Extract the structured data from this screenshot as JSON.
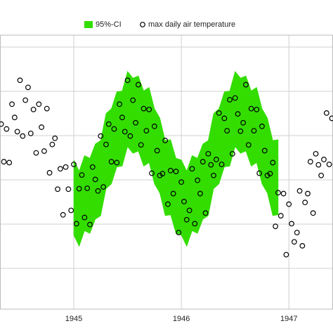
{
  "chart_data": {
    "type": "scatter",
    "xlim": [
      1944.314,
      1947.41
    ],
    "xticks": [
      1945,
      1946,
      1947
    ],
    "ylim": [
      -29.2,
      32.7
    ],
    "ygrid": [
      30,
      20,
      10,
      0,
      -10,
      -20
    ],
    "grid": true,
    "ci": {
      "name": "95%-CI",
      "color": "#33dd00",
      "x": [
        1945.0,
        1945.05,
        1945.1,
        1945.15,
        1945.2,
        1945.25,
        1945.3,
        1945.35,
        1945.4,
        1945.45,
        1945.5,
        1945.55,
        1945.6,
        1945.65,
        1945.7,
        1945.75,
        1945.8,
        1945.85,
        1945.9,
        1945.95,
        1946.0,
        1946.05,
        1946.1,
        1946.15,
        1946.2,
        1946.25,
        1946.3,
        1946.35,
        1946.4,
        1946.45,
        1946.5,
        1946.55,
        1946.6,
        1946.65,
        1946.7,
        1946.75,
        1946.8,
        1946.85,
        1946.9
      ],
      "upper": [
        4.5,
        2,
        5.5,
        4.9,
        8.1,
        8.9,
        15,
        16.1,
        19.9,
        20.1,
        24.5,
        23,
        23.5,
        20.1,
        20.9,
        16.1,
        14,
        8.9,
        9.1,
        4.9,
        4.5,
        2,
        5.5,
        4.9,
        8.1,
        8.9,
        15,
        16.1,
        19.9,
        20.1,
        24.5,
        23,
        23.5,
        20.1,
        20.9,
        16.1,
        14,
        8.9,
        9.1
      ],
      "lower": [
        -12.5,
        -15,
        -11.5,
        -12.1,
        -8.9,
        -8.1,
        -2,
        -0.9,
        2.9,
        3.1,
        7.5,
        6,
        6.5,
        3.1,
        3.9,
        -0.9,
        -3,
        -8.1,
        -7.9,
        -12.1,
        -12.5,
        -15,
        -11.5,
        -12.1,
        -8.9,
        -8.1,
        -2,
        -0.9,
        2.9,
        3.1,
        7.5,
        6,
        6.5,
        3.1,
        3.9,
        -0.9,
        -3,
        -8.1,
        -7.9
      ]
    },
    "series": [
      {
        "name": "max daily air temperature",
        "color": "#000000",
        "x": [
          1944.325,
          1944.35,
          1944.375,
          1944.4,
          1944.425,
          1944.45,
          1944.475,
          1944.5,
          1944.525,
          1944.55,
          1944.575,
          1944.6,
          1944.625,
          1944.65,
          1944.675,
          1944.7,
          1944.725,
          1944.75,
          1944.775,
          1944.8,
          1944.825,
          1944.85,
          1944.875,
          1944.9,
          1944.925,
          1944.95,
          1944.975,
          1945.0,
          1945.025,
          1945.05,
          1945.075,
          1945.1,
          1945.125,
          1945.15,
          1945.175,
          1945.2,
          1945.225,
          1945.25,
          1945.275,
          1945.3,
          1945.325,
          1945.35,
          1945.375,
          1945.4,
          1945.425,
          1945.45,
          1945.475,
          1945.5,
          1945.525,
          1945.55,
          1945.575,
          1945.6,
          1945.625,
          1945.65,
          1945.675,
          1945.7,
          1945.725,
          1945.75,
          1945.775,
          1945.8,
          1945.825,
          1945.85,
          1945.875,
          1945.9,
          1945.925,
          1945.95,
          1945.975,
          1946.0,
          1946.025,
          1946.05,
          1946.075,
          1946.1,
          1946.125,
          1946.15,
          1946.175,
          1946.2,
          1946.225,
          1946.25,
          1946.275,
          1946.3,
          1946.325,
          1946.35,
          1946.375,
          1946.4,
          1946.425,
          1946.45,
          1946.475,
          1946.5,
          1946.525,
          1946.55,
          1946.575,
          1946.6,
          1946.625,
          1946.65,
          1946.675,
          1946.7,
          1946.725,
          1946.75,
          1946.775,
          1946.8,
          1946.825,
          1946.85,
          1946.875,
          1946.9,
          1946.925,
          1946.95,
          1946.975,
          1947.0,
          1947.025,
          1947.05,
          1947.075,
          1947.1,
          1947.125,
          1947.15,
          1947.175,
          1947.2,
          1947.225,
          1947.25,
          1947.275,
          1947.3,
          1947.325,
          1947.35,
          1947.375,
          1947.4
        ],
        "values": [
          12.6,
          4.1,
          11.5,
          3.9,
          17.1,
          14.1,
          10.9,
          22.5,
          9.9,
          18,
          20.9,
          10.5,
          15.9,
          6.1,
          17.1,
          11.9,
          6.5,
          16.1,
          1.6,
          8,
          9.4,
          -2.1,
          2.5,
          -7.9,
          2.9,
          -2.1,
          -6.9,
          3.5,
          -9.9,
          -2,
          1.1,
          -8.5,
          -1.9,
          -10.1,
          2.9,
          0.1,
          -2.5,
          9.9,
          -1.6,
          8,
          12.6,
          4.1,
          11.5,
          3.9,
          17.1,
          14.1,
          10.9,
          22.5,
          9.9,
          18,
          12.9,
          21.5,
          7.9,
          16.1,
          11.1,
          15.9,
          1.5,
          12.1,
          6.6,
          1,
          1.4,
          8.9,
          -5.5,
          2.1,
          -3.1,
          1.9,
          -11.9,
          -0.5,
          -4.9,
          -9,
          -6.9,
          2.5,
          -9.9,
          -0.1,
          -3.1,
          4.1,
          -7.5,
          5.9,
          3.4,
          1,
          4.6,
          15.1,
          3.5,
          13.9,
          11.1,
          18.1,
          5.9,
          18.5,
          14.9,
          11,
          12.9,
          21.5,
          7.9,
          16.1,
          11.1,
          15.9,
          1.5,
          12.1,
          6.6,
          1,
          1.4,
          3.9,
          -10.5,
          -2.9,
          -8.1,
          -3.1,
          -16.9,
          -5.5,
          -9.9,
          -14,
          -11.9,
          -2.5,
          -14.9,
          -5.1,
          -3.1,
          4.1,
          -7.5,
          5.9,
          3.4,
          1,
          4.6,
          15.1,
          3.5,
          13.9
        ]
      }
    ]
  }
}
